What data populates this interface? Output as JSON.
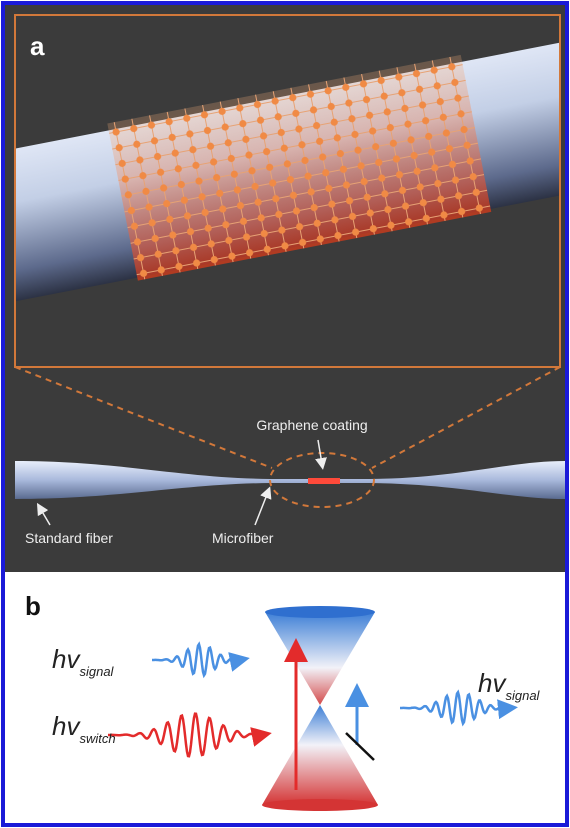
{
  "panel_a": {
    "label": "a",
    "graphene_label": "Graphene coating",
    "standard_fiber_label": "Standard fiber",
    "microfiber_label": "Microfiber"
  },
  "panel_b": {
    "label": "b",
    "input_signal": {
      "symbol": "hv",
      "subscript": "signal"
    },
    "switch": {
      "symbol": "hv",
      "subscript": "switch"
    },
    "output_signal": {
      "symbol": "hv",
      "subscript": "signal"
    }
  }
}
